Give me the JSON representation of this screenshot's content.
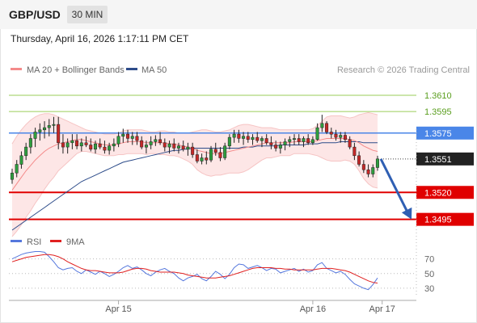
{
  "header": {
    "symbol": "GBP/USD",
    "timeframe": "30 MIN",
    "datetime": "Thursday, April 16, 2026 1:17:11 PM CET"
  },
  "legend": {
    "ma20_bb_label": "MA 20 + Bollinger Bands",
    "ma20_color": "#f48a8a",
    "ma50_label": "MA 50",
    "ma50_color": "#2d4c8a",
    "research": "Research © 2026 Trading Central"
  },
  "rsi_legend": {
    "rsi_label": "RSI",
    "rsi_color": "#5577dd",
    "ma9_label": "9MA",
    "ma9_color": "#e02020"
  },
  "chart_data": [
    {
      "type": "candlestick",
      "title": "GBP/USD",
      "ylim": [
        1.3485,
        1.3625
      ],
      "candles_ohlc": [
        [
          1.3532,
          1.3542,
          1.3528,
          1.3538
        ],
        [
          1.3538,
          1.355,
          1.3534,
          1.3546
        ],
        [
          1.3546,
          1.3558,
          1.3542,
          1.3554
        ],
        [
          1.3554,
          1.3566,
          1.355,
          1.3562
        ],
        [
          1.3562,
          1.3574,
          1.3556,
          1.357
        ],
        [
          1.357,
          1.358,
          1.3562,
          1.3576
        ],
        [
          1.3576,
          1.3584,
          1.3568,
          1.3578
        ],
        [
          1.3578,
          1.3586,
          1.357,
          1.358
        ],
        [
          1.358,
          1.3588,
          1.3572,
          1.3582
        ],
        [
          1.3582,
          1.359,
          1.3575,
          1.3583
        ],
        [
          1.3583,
          1.359,
          1.356,
          1.3566
        ],
        [
          1.3566,
          1.3574,
          1.3556,
          1.3562
        ],
        [
          1.3562,
          1.357,
          1.3556,
          1.3566
        ],
        [
          1.3566,
          1.3574,
          1.356,
          1.3568
        ],
        [
          1.3568,
          1.3574,
          1.356,
          1.3563
        ],
        [
          1.3563,
          1.357,
          1.3558,
          1.3566
        ],
        [
          1.3566,
          1.3572,
          1.3562,
          1.3564
        ],
        [
          1.3564,
          1.357,
          1.3558,
          1.356
        ],
        [
          1.356,
          1.3568,
          1.3556,
          1.3565
        ],
        [
          1.3565,
          1.357,
          1.356,
          1.3562
        ],
        [
          1.3562,
          1.3568,
          1.3556,
          1.3559
        ],
        [
          1.3559,
          1.3566,
          1.3555,
          1.3563
        ],
        [
          1.3563,
          1.357,
          1.3558,
          1.3565
        ],
        [
          1.3565,
          1.3576,
          1.3562,
          1.3572
        ],
        [
          1.3572,
          1.3579,
          1.3566,
          1.3574
        ],
        [
          1.3574,
          1.3578,
          1.3566,
          1.357
        ],
        [
          1.357,
          1.3576,
          1.3564,
          1.3572
        ],
        [
          1.3572,
          1.3576,
          1.3564,
          1.3568
        ],
        [
          1.3568,
          1.3572,
          1.356,
          1.3562
        ],
        [
          1.3562,
          1.3568,
          1.3556,
          1.3564
        ],
        [
          1.3564,
          1.3572,
          1.356,
          1.3567
        ],
        [
          1.3567,
          1.3573,
          1.3563,
          1.3569
        ],
        [
          1.3569,
          1.3576,
          1.3564,
          1.3566
        ],
        [
          1.3566,
          1.357,
          1.3558,
          1.3562
        ],
        [
          1.3562,
          1.3568,
          1.3556,
          1.3565
        ],
        [
          1.3565,
          1.357,
          1.3558,
          1.3561
        ],
        [
          1.3561,
          1.3566,
          1.3556,
          1.3563
        ],
        [
          1.3563,
          1.3568,
          1.3558,
          1.356
        ],
        [
          1.356,
          1.3566,
          1.3554,
          1.3562
        ],
        [
          1.3562,
          1.3566,
          1.3552,
          1.3555
        ],
        [
          1.3555,
          1.356,
          1.3547,
          1.3549
        ],
        [
          1.3549,
          1.3556,
          1.3546,
          1.3552
        ],
        [
          1.3552,
          1.3558,
          1.3546,
          1.355
        ],
        [
          1.355,
          1.3563,
          1.3548,
          1.356
        ],
        [
          1.356,
          1.3566,
          1.3554,
          1.3557
        ],
        [
          1.3557,
          1.3562,
          1.3549,
          1.3552
        ],
        [
          1.3552,
          1.3566,
          1.355,
          1.3563
        ],
        [
          1.3563,
          1.3574,
          1.356,
          1.3571
        ],
        [
          1.3571,
          1.3578,
          1.3566,
          1.3574
        ],
        [
          1.3574,
          1.3578,
          1.3566,
          1.357
        ],
        [
          1.357,
          1.3576,
          1.3564,
          1.3572
        ],
        [
          1.3572,
          1.3576,
          1.3566,
          1.3569
        ],
        [
          1.3569,
          1.3574,
          1.3564,
          1.3571
        ],
        [
          1.3571,
          1.3576,
          1.3566,
          1.3568
        ],
        [
          1.3568,
          1.3572,
          1.3562,
          1.357
        ],
        [
          1.357,
          1.3574,
          1.3564,
          1.3566
        ],
        [
          1.3566,
          1.3572,
          1.356,
          1.3564
        ],
        [
          1.3564,
          1.3568,
          1.3558,
          1.3561
        ],
        [
          1.3561,
          1.3567,
          1.3556,
          1.3564
        ],
        [
          1.3564,
          1.357,
          1.3559,
          1.3567
        ],
        [
          1.3567,
          1.3572,
          1.3562,
          1.3569
        ],
        [
          1.3569,
          1.3574,
          1.3564,
          1.357
        ],
        [
          1.357,
          1.3574,
          1.3564,
          1.3567
        ],
        [
          1.3567,
          1.3572,
          1.3562,
          1.357
        ],
        [
          1.357,
          1.3574,
          1.3564,
          1.3566
        ],
        [
          1.3566,
          1.3572,
          1.3564,
          1.3569
        ],
        [
          1.3569,
          1.3584,
          1.3568,
          1.358
        ],
        [
          1.358,
          1.3592,
          1.3576,
          1.3584
        ],
        [
          1.3584,
          1.3586,
          1.3574,
          1.3576
        ],
        [
          1.3576,
          1.358,
          1.357,
          1.3574
        ],
        [
          1.3574,
          1.3578,
          1.3568,
          1.3571
        ],
        [
          1.3571,
          1.3576,
          1.3566,
          1.3573
        ],
        [
          1.3573,
          1.3576,
          1.3566,
          1.3569
        ],
        [
          1.3569,
          1.3572,
          1.356,
          1.3562
        ],
        [
          1.3562,
          1.3566,
          1.355,
          1.3554
        ],
        [
          1.3554,
          1.3558,
          1.3544,
          1.3546
        ],
        [
          1.3546,
          1.355,
          1.3538,
          1.3541
        ],
        [
          1.3541,
          1.3546,
          1.3534,
          1.3537
        ],
        [
          1.3537,
          1.3546,
          1.3534,
          1.3543
        ],
        [
          1.3543,
          1.3554,
          1.354,
          1.3551
        ]
      ],
      "ma20": [
        1.3522,
        1.3528,
        1.3534,
        1.354,
        1.3545,
        1.355,
        1.3554,
        1.3558,
        1.3561,
        1.3563,
        1.3565,
        1.3566,
        1.3567,
        1.3568,
        1.3569,
        1.3569,
        1.3568,
        1.3567,
        1.3566,
        1.3565,
        1.3564,
        1.3564,
        1.3564,
        1.3565,
        1.3566,
        1.3567,
        1.3567,
        1.3567,
        1.3567,
        1.3566,
        1.3566,
        1.3566,
        1.3566,
        1.3566,
        1.3565,
        1.3565,
        1.3564,
        1.3563,
        1.3562,
        1.3561,
        1.3559,
        1.3558,
        1.3557,
        1.3556,
        1.3556,
        1.3556,
        1.3557,
        1.3558,
        1.3559,
        1.356,
        1.3561,
        1.3562,
        1.3563,
        1.3564,
        1.3565,
        1.3566,
        1.3566,
        1.3566,
        1.3566,
        1.3566,
        1.3566,
        1.3567,
        1.3567,
        1.3567,
        1.3567,
        1.3567,
        1.3568,
        1.3569,
        1.357,
        1.357,
        1.357,
        1.357,
        1.357,
        1.3569,
        1.3568,
        1.3566,
        1.3563,
        1.3561,
        1.3559,
        1.3558
      ],
      "bb_upper": [
        1.3565,
        1.3572,
        1.3578,
        1.3583,
        1.3587,
        1.359,
        1.3592,
        1.3593,
        1.3593,
        1.3592,
        1.359,
        1.3588,
        1.3586,
        1.3584,
        1.3582,
        1.358,
        1.3578,
        1.3577,
        1.3576,
        1.3575,
        1.3574,
        1.3574,
        1.3574,
        1.3575,
        1.3577,
        1.3578,
        1.3578,
        1.3578,
        1.3578,
        1.3577,
        1.3576,
        1.3576,
        1.3577,
        1.3577,
        1.3576,
        1.3576,
        1.3575,
        1.3575,
        1.3575,
        1.3576,
        1.3577,
        1.3578,
        1.3578,
        1.3577,
        1.3576,
        1.3576,
        1.3577,
        1.3578,
        1.358,
        1.3582,
        1.3583,
        1.3583,
        1.3582,
        1.3581,
        1.358,
        1.358,
        1.358,
        1.3579,
        1.3578,
        1.3578,
        1.3578,
        1.3578,
        1.3578,
        1.3578,
        1.3578,
        1.3579,
        1.3582,
        1.3586,
        1.359,
        1.3591,
        1.3591,
        1.3591,
        1.359,
        1.3589,
        1.359,
        1.3592,
        1.3593,
        1.3594,
        1.3593,
        1.3592
      ],
      "bb_lower": [
        1.3479,
        1.3484,
        1.349,
        1.3497,
        1.3503,
        1.351,
        1.3516,
        1.3523,
        1.3529,
        1.3534,
        1.354,
        1.3544,
        1.3548,
        1.3552,
        1.3556,
        1.3558,
        1.3558,
        1.3557,
        1.3556,
        1.3555,
        1.3554,
        1.3554,
        1.3554,
        1.3555,
        1.3555,
        1.3556,
        1.3556,
        1.3556,
        1.3556,
        1.3555,
        1.3556,
        1.3556,
        1.3555,
        1.3555,
        1.3554,
        1.3554,
        1.3553,
        1.3551,
        1.3549,
        1.3546,
        1.3541,
        1.3538,
        1.3536,
        1.3535,
        1.3536,
        1.3536,
        1.3537,
        1.3538,
        1.3538,
        1.3538,
        1.3539,
        1.3541,
        1.3544,
        1.3547,
        1.355,
        1.3552,
        1.3552,
        1.3553,
        1.3554,
        1.3554,
        1.3554,
        1.3556,
        1.3556,
        1.3556,
        1.3556,
        1.3555,
        1.3554,
        1.3552,
        1.355,
        1.3549,
        1.3549,
        1.3549,
        1.355,
        1.3549,
        1.3546,
        1.354,
        1.3533,
        1.3528,
        1.3525,
        1.3524
      ],
      "ma50": [
        1.3485,
        1.3488,
        1.3491,
        1.3494,
        1.3497,
        1.35,
        1.3503,
        1.3506,
        1.3509,
        1.3512,
        1.3515,
        1.3518,
        1.3521,
        1.3524,
        1.3527,
        1.353,
        1.3532,
        1.3534,
        1.3536,
        1.3538,
        1.354,
        1.3542,
        1.3544,
        1.3546,
        1.3548,
        1.3549,
        1.355,
        1.3551,
        1.3552,
        1.3553,
        1.3554,
        1.3555,
        1.3556,
        1.3557,
        1.3558,
        1.3559,
        1.3559,
        1.356,
        1.356,
        1.3561,
        1.3561,
        1.3561,
        1.3561,
        1.3561,
        1.3561,
        1.3561,
        1.3561,
        1.3561,
        1.3561,
        1.3561,
        1.3562,
        1.3562,
        1.3562,
        1.3563,
        1.3563,
        1.3563,
        1.3563,
        1.3563,
        1.3564,
        1.3564,
        1.3564,
        1.3564,
        1.3564,
        1.3564,
        1.3565,
        1.3565,
        1.3565,
        1.3566,
        1.3566,
        1.3566,
        1.3566,
        1.3567,
        1.3567,
        1.3567,
        1.3567,
        1.3567,
        1.3566,
        1.3566,
        1.3566,
        1.3566
      ],
      "levels": [
        {
          "value": 1.361,
          "label": "1.3610",
          "kind": "resistance",
          "color": "#9acd5a"
        },
        {
          "value": 1.3595,
          "label": "1.3595",
          "kind": "resistance",
          "color": "#9acd5a"
        },
        {
          "value": 1.3575,
          "label": "1.3575",
          "kind": "pivot",
          "color": "#4a86e8"
        },
        {
          "value": 1.352,
          "label": "1.3520",
          "kind": "support",
          "color": "#e00000"
        },
        {
          "value": 1.3495,
          "label": "1.3495",
          "kind": "support",
          "color": "#e00000"
        }
      ],
      "last_price": {
        "value": 1.3551,
        "label": "1.3551"
      },
      "forecast_arrow": {
        "from": 1.3551,
        "to": 1.3495,
        "direction": "down",
        "color": "#2f5fb3"
      },
      "x_ticks": [
        "Apr 15",
        "Apr 16",
        "Apr 17"
      ],
      "x_tick_candle_index": [
        23,
        65,
        80
      ]
    },
    {
      "type": "line",
      "title": "RSI",
      "ylim": [
        20,
        85
      ],
      "yticks": [
        70,
        50,
        30
      ],
      "series": [
        {
          "name": "RSI",
          "color": "#5577dd",
          "values": [
            70,
            73,
            76,
            78,
            79,
            80,
            80,
            79,
            73,
            66,
            58,
            55,
            57,
            58,
            53,
            50,
            55,
            52,
            49,
            53,
            50,
            46,
            49,
            53,
            58,
            61,
            57,
            59,
            55,
            50,
            47,
            52,
            55,
            57,
            53,
            50,
            44,
            40,
            44,
            46,
            49,
            43,
            40,
            46,
            53,
            49,
            43,
            49,
            58,
            63,
            62,
            57,
            59,
            61,
            58,
            54,
            57,
            56,
            51,
            53,
            55,
            57,
            53,
            56,
            52,
            54,
            62,
            65,
            57,
            54,
            51,
            53,
            49,
            42,
            36,
            33,
            30,
            28,
            35,
            44
          ]
        },
        {
          "name": "9MA",
          "color": "#e02020",
          "values": [
            66,
            68,
            70,
            72,
            73,
            74,
            75,
            76,
            76,
            75,
            73,
            70,
            66,
            63,
            60,
            57,
            55,
            54,
            54,
            53,
            52,
            51,
            51,
            51,
            52,
            54,
            56,
            57,
            57,
            56,
            54,
            53,
            52,
            52,
            52,
            52,
            51,
            50,
            48,
            47,
            46,
            45,
            44,
            44,
            44,
            45,
            46,
            47,
            49,
            51,
            53,
            55,
            57,
            58,
            58,
            58,
            58,
            57,
            57,
            56,
            56,
            55,
            55,
            55,
            55,
            55,
            56,
            57,
            57,
            57,
            56,
            55,
            54,
            52,
            49,
            46,
            43,
            40,
            38,
            37
          ]
        }
      ]
    }
  ]
}
